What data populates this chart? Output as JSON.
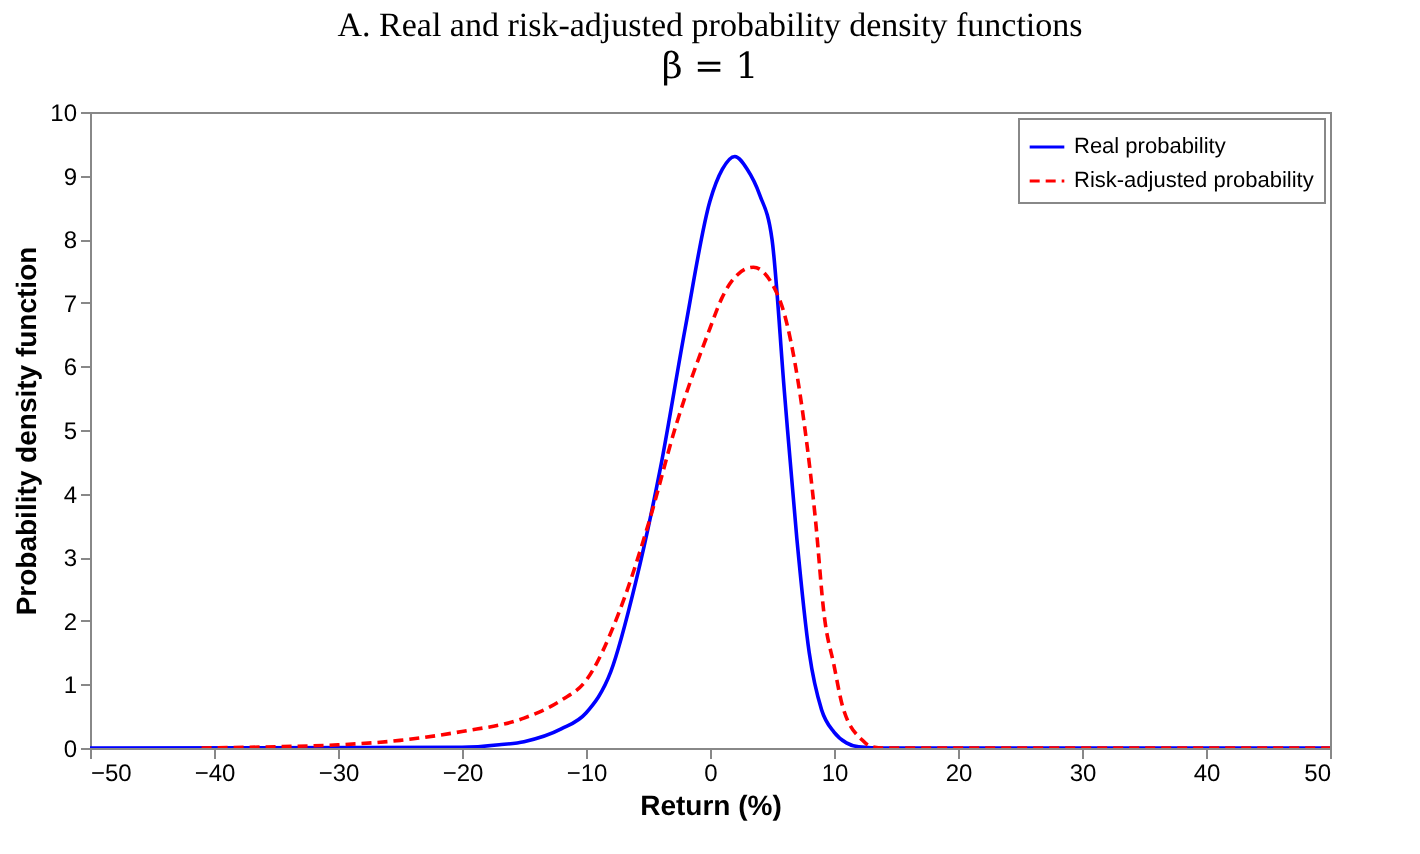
{
  "chart_data": {
    "type": "line",
    "title": "A. Real and risk-adjusted probability density functions",
    "subtitle": "β = 1",
    "xlabel": "Return (%)",
    "ylabel": "Probability density function",
    "xlim": [
      -50,
      50
    ],
    "xticks": [
      -50,
      -40,
      -30,
      -20,
      -10,
      0,
      10,
      20,
      30,
      40,
      50
    ],
    "ylim": [
      0,
      10
    ],
    "yticks": [
      0,
      1,
      2,
      3,
      4,
      5,
      6,
      7,
      8,
      9,
      10
    ],
    "grid": false,
    "legend": "top right",
    "series": [
      {
        "name": "Real probability",
        "color": "#0000ff",
        "line_style": "solid",
        "x": [
          -50,
          -20,
          -17,
          -15,
          -12,
          -10,
          -8,
          -6,
          -4,
          -2,
          0,
          1,
          2,
          3,
          4,
          5,
          6,
          7,
          8,
          9,
          10,
          11,
          12,
          14,
          50
        ],
        "values": [
          0,
          0.01,
          0.05,
          0.1,
          0.3,
          0.55,
          1.2,
          2.6,
          4.4,
          6.6,
          8.6,
          9.1,
          9.3,
          9.1,
          8.7,
          8.0,
          5.6,
          3.3,
          1.5,
          0.6,
          0.25,
          0.08,
          0.02,
          0,
          0
        ]
      },
      {
        "name": "Risk-adjusted probability",
        "color": "#ff0000",
        "line_style": "dashed",
        "x": [
          -41,
          -35,
          -30,
          -25,
          -20,
          -15,
          -12,
          -10,
          -7.4,
          -5,
          -2.7,
          0,
          0.9,
          2,
          3.5,
          5,
          6.1,
          7.6,
          8.5,
          9.2,
          10,
          10.7,
          12.3,
          13,
          14,
          50
        ],
        "values": [
          0,
          0.02,
          0.05,
          0.12,
          0.26,
          0.47,
          0.75,
          1.06,
          2.1,
          3.5,
          5.1,
          6.6,
          7.05,
          7.4,
          7.56,
          7.3,
          6.75,
          5.1,
          3.6,
          2.1,
          1.3,
          0.65,
          0.12,
          0.02,
          0,
          0
        ]
      }
    ]
  }
}
